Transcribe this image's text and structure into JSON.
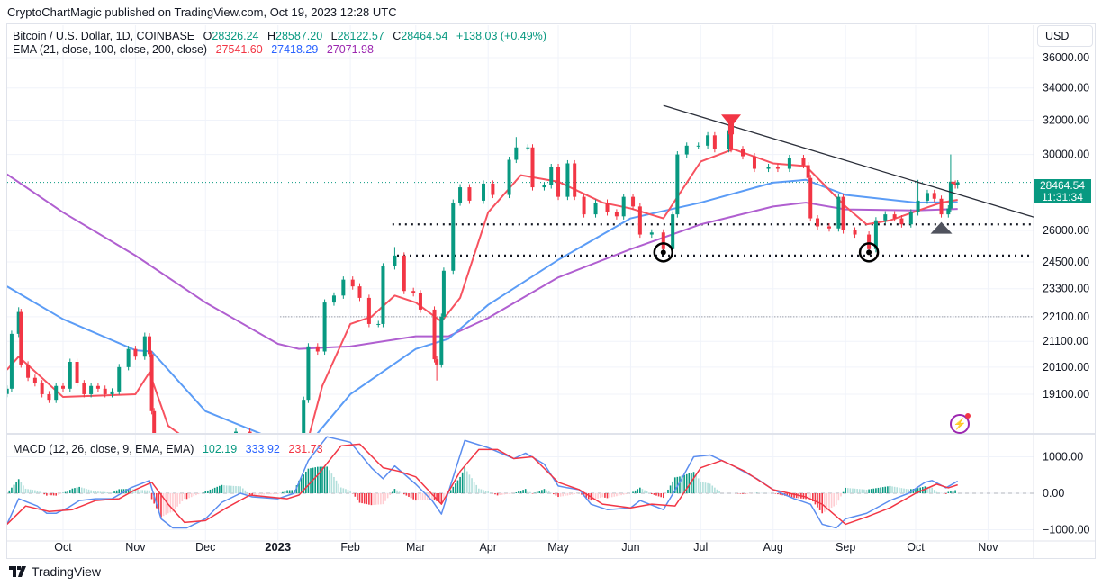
{
  "publisher_line": "CryptoChartMagic published on TradingView.com, Oct 19, 2023 12:28 UTC",
  "legend": {
    "symbol": "Bitcoin / U.S. Dollar, 1D, COINBASE",
    "open_label": "O",
    "open": "28326.24",
    "high_label": "H",
    "high": "28587.20",
    "low_label": "L",
    "low": "28122.57",
    "close_label": "C",
    "close": "28464.54",
    "change": "+138.03 (+0.49%)",
    "ema_label": "EMA (21, close, 100, close, 200, close)",
    "ema21": "27541.60",
    "ema100": "27418.29",
    "ema200": "27071.98",
    "macd_label": "MACD (12, 26, close, 9, EMA, EMA)",
    "macd_hist": "102.19",
    "macd": "333.92",
    "macd_signal": "231.73"
  },
  "currency_button": "USD",
  "price_tag": {
    "price": "28464.54",
    "countdown": "11:31:34"
  },
  "footer_brand": "TradingView",
  "colors": {
    "up": "#089981",
    "down": "#f23645",
    "ema21": "#f7525f",
    "ema100": "#5b9cf6",
    "ema200": "#b05fd0",
    "macd": "#2962ff",
    "signal": "#f23645",
    "trendline": "#2a2e39",
    "marker_gray": "#50535e"
  },
  "chart_data": {
    "type": "candlestick",
    "y_scale": "log",
    "grid": true,
    "y_ticks": [
      "36000.00",
      "34000.00",
      "32000.00",
      "30000.00",
      "26000.00",
      "24500.00",
      "23300.00",
      "22100.00",
      "21100.00",
      "20100.00",
      "19100.00"
    ],
    "x_ticks": [
      {
        "date": "2022-10-01",
        "label": "Oct"
      },
      {
        "date": "2022-11-01",
        "label": "Nov"
      },
      {
        "date": "2022-12-01",
        "label": "Dec"
      },
      {
        "date": "2023-01-01",
        "label": "2023",
        "bold": true
      },
      {
        "date": "2023-02-01",
        "label": "Feb"
      },
      {
        "date": "2023-03-01",
        "label": "Mar"
      },
      {
        "date": "2023-04-01",
        "label": "Apr"
      },
      {
        "date": "2023-05-01",
        "label": "May"
      },
      {
        "date": "2023-06-01",
        "label": "Jun"
      },
      {
        "date": "2023-07-01",
        "label": "Jul"
      },
      {
        "date": "2023-08-01",
        "label": "Aug"
      },
      {
        "date": "2023-09-01",
        "label": "Sep"
      },
      {
        "date": "2023-10-01",
        "label": "Oct"
      },
      {
        "date": "2023-11-01",
        "label": "Nov"
      }
    ],
    "price": [
      [
        "2022-09-07",
        19300
      ],
      [
        "2022-09-09",
        21400
      ],
      [
        "2022-09-12",
        22300,
        22500
      ],
      [
        "2022-09-13",
        20200
      ],
      [
        "2022-09-16",
        19700
      ],
      [
        "2022-09-19",
        19500
      ],
      [
        "2022-09-22",
        19100
      ],
      [
        "2022-09-25",
        18900
      ],
      [
        "2022-09-28",
        19400
      ],
      [
        "2022-10-01",
        19300
      ],
      [
        "2022-10-04",
        20300
      ],
      [
        "2022-10-07",
        19500
      ],
      [
        "2022-10-10",
        19100
      ],
      [
        "2022-10-13",
        19400
      ],
      [
        "2022-10-16",
        19300
      ],
      [
        "2022-10-19",
        19100
      ],
      [
        "2022-10-22",
        19200
      ],
      [
        "2022-10-25",
        20100
      ],
      [
        "2022-10-29",
        20800
      ],
      [
        "2022-11-01",
        20500
      ],
      [
        "2022-11-05",
        21300,
        21450
      ],
      [
        "2022-11-07",
        20600
      ],
      [
        "2022-11-08",
        18500
      ],
      [
        "2022-11-09",
        15900
      ],
      [
        "2022-11-14",
        16600
      ],
      [
        "2022-11-20",
        16300
      ],
      [
        "2022-11-25",
        16500
      ],
      [
        "2022-12-01",
        17000
      ],
      [
        "2022-12-08",
        17200
      ],
      [
        "2022-12-14",
        17800
      ],
      [
        "2022-12-20",
        16900
      ],
      [
        "2022-12-28",
        16600
      ],
      [
        "2023-01-04",
        16900
      ],
      [
        "2023-01-09",
        17200
      ],
      [
        "2023-01-12",
        18900
      ],
      [
        "2023-01-14",
        20900
      ],
      [
        "2023-01-18",
        20700
      ],
      [
        "2023-01-21",
        22700
      ],
      [
        "2023-01-25",
        23000
      ],
      [
        "2023-01-29",
        23700
      ],
      [
        "2023-02-02",
        23400
      ],
      [
        "2023-02-05",
        22900
      ],
      [
        "2023-02-09",
        21800
      ],
      [
        "2023-02-13",
        21800
      ],
      [
        "2023-02-15",
        24300
      ],
      [
        "2023-02-20",
        24800,
        25200
      ],
      [
        "2023-02-24",
        23200
      ],
      [
        "2023-02-28",
        23100
      ],
      [
        "2023-03-03",
        22400
      ],
      [
        "2023-03-09",
        20400
      ],
      [
        "2023-03-10",
        20200,
        19600
      ],
      [
        "2023-03-12",
        22100
      ],
      [
        "2023-03-13",
        24100
      ],
      [
        "2023-03-17",
        27400
      ],
      [
        "2023-03-20",
        28200
      ],
      [
        "2023-03-24",
        27500
      ],
      [
        "2023-03-30",
        28400
      ],
      [
        "2023-04-03",
        27800
      ],
      [
        "2023-04-10",
        29700
      ],
      [
        "2023-04-13",
        30400,
        31000
      ],
      [
        "2023-04-18",
        30400
      ],
      [
        "2023-04-20",
        28200
      ],
      [
        "2023-04-25",
        28300
      ],
      [
        "2023-04-28",
        29300
      ],
      [
        "2023-05-01",
        27700
      ],
      [
        "2023-05-05",
        29500
      ],
      [
        "2023-05-08",
        27700
      ],
      [
        "2023-05-12",
        26800
      ],
      [
        "2023-05-17",
        27400
      ],
      [
        "2023-05-22",
        26900
      ],
      [
        "2023-05-26",
        26700
      ],
      [
        "2023-05-29",
        27700
      ],
      [
        "2023-06-02",
        27200
      ],
      [
        "2023-06-05",
        25800
      ],
      [
        "2023-06-10",
        25900
      ],
      [
        "2023-06-15",
        25100
      ],
      [
        "2023-06-19",
        26800
      ],
      [
        "2023-06-21",
        30000
      ],
      [
        "2023-06-25",
        30500
      ],
      [
        "2023-06-30",
        30500
      ],
      [
        "2023-07-04",
        31100
      ],
      [
        "2023-07-07",
        30300
      ],
      [
        "2023-07-13",
        31400,
        31800
      ],
      [
        "2023-07-14",
        30300
      ],
      [
        "2023-07-19",
        29900
      ],
      [
        "2023-07-24",
        29200
      ],
      [
        "2023-07-30",
        29300
      ],
      [
        "2023-08-03",
        29200
      ],
      [
        "2023-08-08",
        29800
      ],
      [
        "2023-08-14",
        29400
      ],
      [
        "2023-08-16",
        28700
      ],
      [
        "2023-08-17",
        26600
      ],
      [
        "2023-08-20",
        26200
      ],
      [
        "2023-08-25",
        26100
      ],
      [
        "2023-08-29",
        27700
      ],
      [
        "2023-08-31",
        26000
      ],
      [
        "2023-09-05",
        25800
      ],
      [
        "2023-09-11",
        25100
      ],
      [
        "2023-09-14",
        26500
      ],
      [
        "2023-09-18",
        26800
      ],
      [
        "2023-09-22",
        26600
      ],
      [
        "2023-09-25",
        26300
      ],
      [
        "2023-09-29",
        26900
      ],
      [
        "2023-10-02",
        27500,
        28600
      ],
      [
        "2023-10-06",
        27900
      ],
      [
        "2023-10-09",
        27600
      ],
      [
        "2023-10-12",
        26800
      ],
      [
        "2023-10-15",
        27100
      ],
      [
        "2023-10-16",
        28500,
        30000
      ],
      [
        "2023-10-17",
        28400
      ],
      [
        "2023-10-18",
        28300
      ],
      [
        "2023-10-19",
        28464.54,
        28587.2
      ]
    ],
    "ema21": [
      [
        "2022-09-07",
        20000
      ],
      [
        "2022-09-12",
        20500
      ],
      [
        "2022-10-01",
        19000
      ],
      [
        "2022-11-01",
        19100
      ],
      [
        "2022-11-07",
        19900
      ],
      [
        "2022-11-15",
        18000
      ],
      [
        "2022-12-01",
        17100
      ],
      [
        "2023-01-12",
        17000
      ],
      [
        "2023-01-20",
        19400
      ],
      [
        "2023-02-01",
        21800
      ],
      [
        "2023-02-10",
        22100
      ],
      [
        "2023-02-20",
        23000
      ],
      [
        "2023-03-01",
        22700
      ],
      [
        "2023-03-12",
        21900
      ],
      [
        "2023-03-20",
        22900
      ],
      [
        "2023-04-01",
        26900
      ],
      [
        "2023-04-15",
        28850
      ],
      [
        "2023-05-01",
        28500
      ],
      [
        "2023-05-20",
        27400
      ],
      [
        "2023-06-01",
        27100
      ],
      [
        "2023-06-15",
        26600
      ],
      [
        "2023-07-01",
        29600
      ],
      [
        "2023-07-15",
        30300
      ],
      [
        "2023-08-01",
        29500
      ],
      [
        "2023-08-15",
        29350
      ],
      [
        "2023-09-01",
        27200
      ],
      [
        "2023-09-10",
        26300
      ],
      [
        "2023-09-20",
        26500
      ],
      [
        "2023-10-01",
        26950
      ],
      [
        "2023-10-12",
        27400
      ],
      [
        "2023-10-19",
        27541.6
      ]
    ],
    "ema100": [
      [
        "2022-09-07",
        23400
      ],
      [
        "2022-10-01",
        22000
      ],
      [
        "2022-11-01",
        20750
      ],
      [
        "2022-11-08",
        20700
      ],
      [
        "2022-12-01",
        18500
      ],
      [
        "2023-01-01",
        17500
      ],
      [
        "2023-01-12",
        17200
      ],
      [
        "2023-02-01",
        19100
      ],
      [
        "2023-03-01",
        20800
      ],
      [
        "2023-03-15",
        21200
      ],
      [
        "2023-04-01",
        22600
      ],
      [
        "2023-05-01",
        24600
      ],
      [
        "2023-06-01",
        26600
      ],
      [
        "2023-07-01",
        27400
      ],
      [
        "2023-08-01",
        28450
      ],
      [
        "2023-08-15",
        28600
      ],
      [
        "2023-09-01",
        27800
      ],
      [
        "2023-10-01",
        27400
      ],
      [
        "2023-10-19",
        27418.29
      ]
    ],
    "ema200": [
      [
        "2022-09-07",
        28900
      ],
      [
        "2022-10-01",
        26900
      ],
      [
        "2022-11-01",
        24800
      ],
      [
        "2022-12-01",
        22700
      ],
      [
        "2023-01-01",
        21000
      ],
      [
        "2023-01-10",
        20800
      ],
      [
        "2023-02-01",
        20900
      ],
      [
        "2023-03-01",
        21300
      ],
      [
        "2023-03-15",
        21300
      ],
      [
        "2023-04-01",
        22050
      ],
      [
        "2023-05-01",
        23800
      ],
      [
        "2023-06-01",
        25100
      ],
      [
        "2023-07-01",
        26300
      ],
      [
        "2023-08-01",
        27200
      ],
      [
        "2023-08-15",
        27400
      ],
      [
        "2023-09-01",
        27050
      ],
      [
        "2023-10-01",
        27000
      ],
      [
        "2023-10-19",
        27071.98
      ]
    ],
    "levels": [
      {
        "value": 26300,
        "from": "2023-02-19",
        "style": "dotted-bold"
      },
      {
        "value": 24800,
        "from": "2023-02-21",
        "style": "dotted-bold"
      },
      {
        "value": 22100,
        "from": "2023-01-02",
        "style": "dotted-thin"
      }
    ],
    "trendline": {
      "from": [
        "2023-06-15",
        32900
      ],
      "to": [
        "2023-11-28",
        26400
      ]
    },
    "markers": [
      {
        "type": "arrow-down",
        "date": "2023-07-14",
        "value": 31800,
        "color": "#f23645"
      },
      {
        "type": "circle",
        "date": "2023-06-15",
        "value": 24950
      },
      {
        "type": "circle",
        "date": "2023-09-11",
        "value": 24950
      },
      {
        "type": "triangle-up",
        "date": "2023-10-12",
        "value": 26150,
        "color": "#50535e"
      }
    ],
    "last_price": 28464.54,
    "macd_pane": {
      "y_ticks": [
        "1000.00",
        "0.00",
        "−1000.00"
      ],
      "macd": [
        [
          "2022-09-07",
          -850
        ],
        [
          "2022-09-12",
          -150
        ],
        [
          "2022-09-20",
          -350
        ],
        [
          "2022-09-24",
          -550
        ],
        [
          "2022-09-28",
          -550
        ],
        [
          "2022-10-03",
          -400
        ],
        [
          "2022-10-08",
          -200
        ],
        [
          "2022-10-15",
          -150
        ],
        [
          "2022-10-22",
          -150
        ],
        [
          "2022-10-30",
          150
        ],
        [
          "2022-11-07",
          350
        ],
        [
          "2022-11-12",
          -700
        ],
        [
          "2022-11-17",
          -950
        ],
        [
          "2022-11-23",
          -950
        ],
        [
          "2022-12-01",
          -700
        ],
        [
          "2022-12-08",
          -250
        ],
        [
          "2022-12-16",
          0
        ],
        [
          "2022-12-21",
          -100
        ],
        [
          "2023-01-01",
          -150
        ],
        [
          "2023-01-08",
          0
        ],
        [
          "2023-01-14",
          900
        ],
        [
          "2023-01-22",
          1550
        ],
        [
          "2023-02-01",
          1400
        ],
        [
          "2023-02-10",
          700
        ],
        [
          "2023-02-15",
          400
        ],
        [
          "2023-02-20",
          750
        ],
        [
          "2023-03-01",
          250
        ],
        [
          "2023-03-08",
          -200
        ],
        [
          "2023-03-12",
          -570
        ],
        [
          "2023-03-22",
          1450
        ],
        [
          "2023-04-01",
          1250
        ],
        [
          "2023-04-12",
          950
        ],
        [
          "2023-04-17",
          1100
        ],
        [
          "2023-04-25",
          800
        ],
        [
          "2023-05-01",
          200
        ],
        [
          "2023-05-05",
          150
        ],
        [
          "2023-05-10",
          100
        ],
        [
          "2023-05-15",
          -300
        ],
        [
          "2023-05-22",
          -450
        ],
        [
          "2023-06-01",
          -400
        ],
        [
          "2023-06-05",
          -200
        ],
        [
          "2023-06-15",
          -450
        ],
        [
          "2023-06-22",
          300
        ],
        [
          "2023-06-28",
          1000
        ],
        [
          "2023-07-05",
          1050
        ],
        [
          "2023-07-15",
          750
        ],
        [
          "2023-07-25",
          400
        ],
        [
          "2023-08-01",
          100
        ],
        [
          "2023-08-10",
          -150
        ],
        [
          "2023-08-17",
          -300
        ],
        [
          "2023-08-22",
          -850
        ],
        [
          "2023-08-28",
          -950
        ],
        [
          "2023-09-01",
          -700
        ],
        [
          "2023-09-10",
          -550
        ],
        [
          "2023-09-20",
          -200
        ],
        [
          "2023-09-28",
          0
        ],
        [
          "2023-10-05",
          300
        ],
        [
          "2023-10-08",
          350
        ],
        [
          "2023-10-14",
          150
        ],
        [
          "2023-10-19",
          333.92
        ]
      ],
      "signal": [
        [
          "2022-09-07",
          -850
        ],
        [
          "2022-09-15",
          -350
        ],
        [
          "2022-09-25",
          -500
        ],
        [
          "2022-10-05",
          -450
        ],
        [
          "2022-10-15",
          -200
        ],
        [
          "2022-10-25",
          -150
        ],
        [
          "2022-11-01",
          100
        ],
        [
          "2022-11-08",
          300
        ],
        [
          "2022-11-15",
          -300
        ],
        [
          "2022-11-22",
          -800
        ],
        [
          "2022-12-01",
          -750
        ],
        [
          "2022-12-10",
          -400
        ],
        [
          "2022-12-20",
          -50
        ],
        [
          "2023-01-05",
          -150
        ],
        [
          "2023-01-10",
          -50
        ],
        [
          "2023-01-18",
          500
        ],
        [
          "2023-01-28",
          1300
        ],
        [
          "2023-02-05",
          1350
        ],
        [
          "2023-02-15",
          700
        ],
        [
          "2023-02-22",
          600
        ],
        [
          "2023-03-01",
          450
        ],
        [
          "2023-03-12",
          -300
        ],
        [
          "2023-03-20",
          600
        ],
        [
          "2023-03-28",
          1200
        ],
        [
          "2023-04-05",
          1200
        ],
        [
          "2023-04-12",
          950
        ],
        [
          "2023-04-20",
          1000
        ],
        [
          "2023-05-01",
          300
        ],
        [
          "2023-05-10",
          100
        ],
        [
          "2023-05-20",
          -300
        ],
        [
          "2023-06-01",
          -400
        ],
        [
          "2023-06-10",
          -300
        ],
        [
          "2023-06-20",
          -350
        ],
        [
          "2023-07-01",
          700
        ],
        [
          "2023-07-10",
          900
        ],
        [
          "2023-07-20",
          600
        ],
        [
          "2023-08-01",
          100
        ],
        [
          "2023-08-15",
          -100
        ],
        [
          "2023-08-22",
          -300
        ],
        [
          "2023-09-01",
          -850
        ],
        [
          "2023-09-10",
          -650
        ],
        [
          "2023-09-20",
          -400
        ],
        [
          "2023-10-01",
          0
        ],
        [
          "2023-10-10",
          250
        ],
        [
          "2023-10-15",
          150
        ],
        [
          "2023-10-19",
          231.73
        ]
      ]
    }
  }
}
